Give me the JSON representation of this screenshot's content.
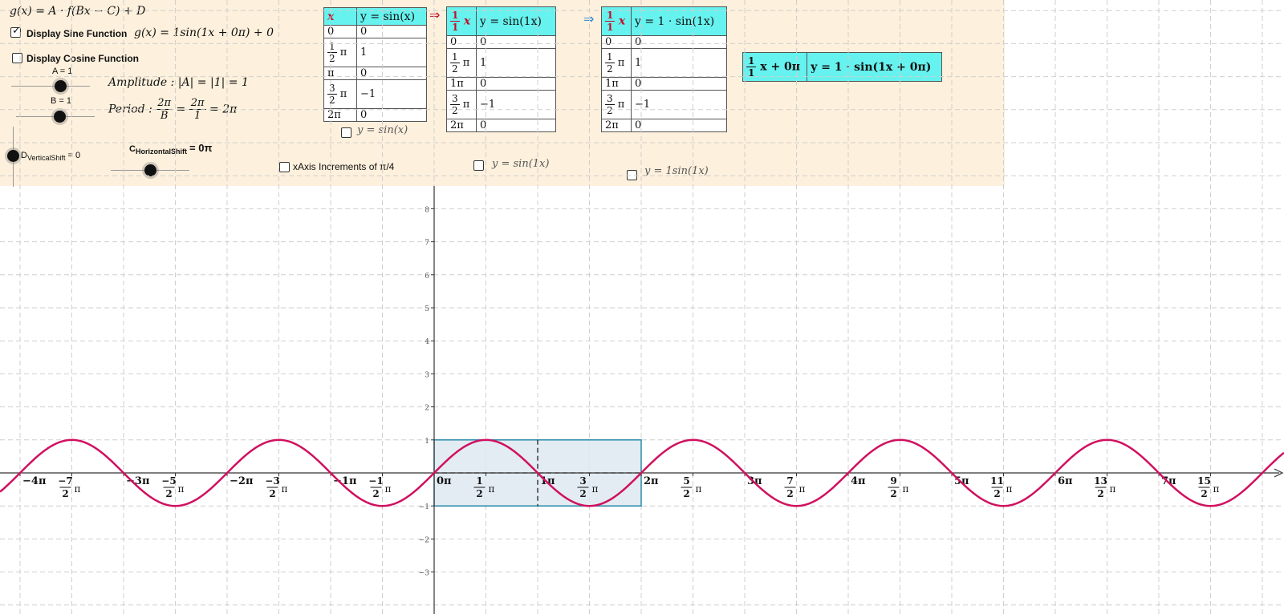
{
  "header": {
    "general_formula": "g(x) = A · f(Bx − C) + D",
    "display_sine_label": "Display Sine Function",
    "sine_formula": "g(x) = 1sin(1x + 0π) + 0",
    "display_cosine_label": "Display Cosine Function",
    "display_sine_checked": true,
    "display_cosine_checked": false
  },
  "sliders": {
    "a_label": "A = 1",
    "b_label": "B = 1",
    "d_label": "D",
    "d_sub": "VerticalShift",
    "d_value": "= 0",
    "c_label": "C",
    "c_sub": "HorizontalShift",
    "c_value": "= 0π",
    "a_value": 1,
    "b_value": 1,
    "c_value_num": 0,
    "d_value_num": 0
  },
  "info": {
    "amplitude_text": "Amplitude : |A| = |1| = 1",
    "period_label": "Period :",
    "period_num1": "2π",
    "period_den1": "B",
    "period_num2": "2π",
    "period_den2": "1",
    "period_result": "= 2π"
  },
  "xaxis_increments_label": "xAxis Increments of π/4",
  "tables": {
    "t1": {
      "header_x": "x",
      "header_y": "y = sin(x)",
      "rows": [
        {
          "x": "0",
          "y": "0"
        },
        {
          "x_num": "1",
          "x_den": "2",
          "x_suffix": "π",
          "y": "1"
        },
        {
          "x": "π",
          "y": "0"
        },
        {
          "x_num": "3",
          "x_den": "2",
          "x_suffix": "π",
          "y": "−1"
        },
        {
          "x": "2π",
          "y": "0"
        }
      ],
      "checkbox_label": "y = sin(x)"
    },
    "arrow1": "⇒",
    "t2": {
      "header_x_num": "1",
      "header_x_den": "1",
      "header_x_var": "x",
      "header_y": "y = sin(1x)",
      "rows": [
        {
          "x": "0",
          "y": "0"
        },
        {
          "x_num": "1",
          "x_den": "2",
          "x_suffix": "π",
          "y": "1"
        },
        {
          "x": "1π",
          "y": "0"
        },
        {
          "x_num": "3",
          "x_den": "2",
          "x_suffix": "π",
          "y": "−1"
        },
        {
          "x": "2π",
          "y": "0"
        }
      ],
      "checkbox_label": "y = sin(1x)"
    },
    "arrow2": "⇒",
    "t3": {
      "header_x_num": "1",
      "header_x_den": "1",
      "header_x_var": "x",
      "header_y": "y = 1 · sin(1x)",
      "rows": [
        {
          "x": "0",
          "y": "0"
        },
        {
          "x_num": "1",
          "x_den": "2",
          "x_suffix": "π",
          "y": "1"
        },
        {
          "x": "1π",
          "y": "0"
        },
        {
          "x_num": "3",
          "x_den": "2",
          "x_suffix": "π",
          "y": "−1"
        },
        {
          "x": "2π",
          "y": "0"
        }
      ],
      "checkbox_label": "y = 1sin(1x)"
    },
    "t4": {
      "x_num": "1",
      "x_den": "1",
      "x_expr": "x + 0π",
      "y_expr": "y = 1 · sin(1x + 0π)"
    }
  },
  "colors": {
    "panel_bg": "#fdf0dc",
    "table_header": "#66f2ee",
    "curve": "#d0105f",
    "rect_stroke": "#2a8aa8",
    "rect_fill": "#dde9f0",
    "red_text": "#c0102a",
    "arrow_blue": "#2a8ad8",
    "formula_pink": "#cc0a5c"
  },
  "graph": {
    "y_ticks": [
      "8",
      "7",
      "6",
      "5",
      "4",
      "3",
      "2",
      "1",
      "−1",
      "−2",
      "−3"
    ],
    "x_ticks": [
      {
        "t": "int",
        "v": -8,
        "label": "−4π"
      },
      {
        "t": "frac",
        "v": -7,
        "num": "−7",
        "den": "2"
      },
      {
        "t": "int",
        "v": -6,
        "label": "−3π"
      },
      {
        "t": "frac",
        "v": -5,
        "num": "−5",
        "den": "2"
      },
      {
        "t": "int",
        "v": -4,
        "label": "−2π"
      },
      {
        "t": "frac",
        "v": -3,
        "num": "−3",
        "den": "2"
      },
      {
        "t": "int",
        "v": -2,
        "label": "−1π"
      },
      {
        "t": "frac",
        "v": -1,
        "num": "−1",
        "den": "2"
      },
      {
        "t": "int",
        "v": 0,
        "label": "0π"
      },
      {
        "t": "frac",
        "v": 1,
        "num": "1",
        "den": "2"
      },
      {
        "t": "int",
        "v": 2,
        "label": "1π"
      },
      {
        "t": "frac",
        "v": 3,
        "num": "3",
        "den": "2"
      },
      {
        "t": "int",
        "v": 4,
        "label": "2π"
      },
      {
        "t": "frac",
        "v": 5,
        "num": "5",
        "den": "2"
      },
      {
        "t": "int",
        "v": 6,
        "label": "3π"
      },
      {
        "t": "frac",
        "v": 7,
        "num": "7",
        "den": "2"
      },
      {
        "t": "int",
        "v": 8,
        "label": "4π"
      },
      {
        "t": "frac",
        "v": 9,
        "num": "9",
        "den": "2"
      },
      {
        "t": "int",
        "v": 10,
        "label": "5π"
      },
      {
        "t": "frac",
        "v": 11,
        "num": "11",
        "den": "2"
      },
      {
        "t": "int",
        "v": 12,
        "label": "6π"
      },
      {
        "t": "frac",
        "v": 13,
        "num": "13",
        "den": "2"
      },
      {
        "t": "int",
        "v": 14,
        "label": "7π"
      },
      {
        "t": "frac",
        "v": 15,
        "num": "15",
        "den": "2"
      }
    ],
    "pi_symbol": "π"
  },
  "chart_data": {
    "type": "line",
    "series": [
      {
        "function": "g(x) = 1sin(1x + 0π) + 0"
      }
    ],
    "xlim_pi": [
      -4.2,
      7.7
    ],
    "ylim": [
      -3.5,
      8.5
    ],
    "grid": true
  }
}
